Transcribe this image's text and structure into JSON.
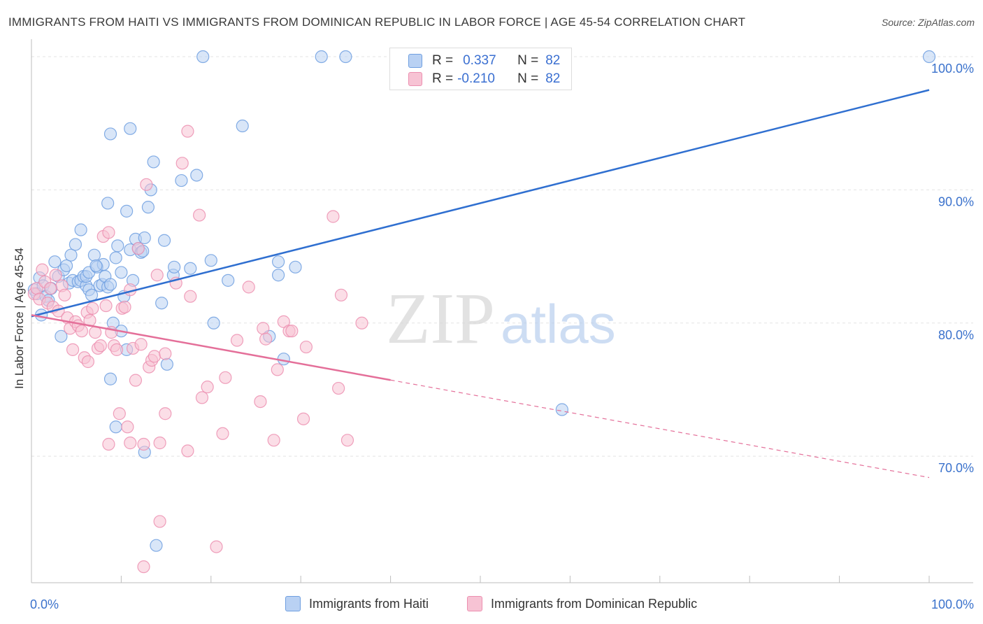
{
  "title": "IMMIGRANTS FROM HAITI VS IMMIGRANTS FROM DOMINICAN REPUBLIC IN LABOR FORCE | AGE 45-54 CORRELATION CHART",
  "source": "Source: ZipAtlas.com",
  "watermark": {
    "zip": "ZIP",
    "atlas": "atlas"
  },
  "stats_box": {
    "rows": [
      {
        "r_label": "R =",
        "r_value": "0.337",
        "n_label": "N =",
        "n_value": "82"
      },
      {
        "r_label": "R =",
        "r_value": "-0.210",
        "n_label": "N =",
        "n_value": "82"
      }
    ]
  },
  "colors": {
    "haiti_fill": "#b9d1f3",
    "haiti_stroke": "#6f9fe0",
    "haiti_line": "#2f6fd0",
    "dr_fill": "#f7c3d4",
    "dr_stroke": "#ec8fb0",
    "dr_line": "#e46f99",
    "axis_label": "#3b72cc",
    "grid": "#e3e3e3"
  },
  "chart_data": {
    "type": "scatter",
    "title": "IMMIGRANTS FROM HAITI VS IMMIGRANTS FROM DOMINICAN REPUBLIC IN LABOR FORCE | AGE 45-54 CORRELATION CHART",
    "xlabel": "",
    "ylabel": "In Labor Force | Age 45-54",
    "x_tick_labels": [
      "0.0%",
      "100.0%"
    ],
    "y_tick_labels": [
      "70.0%",
      "80.0%",
      "90.0%",
      "100.0%"
    ],
    "y_ticks": [
      70,
      80,
      90,
      100
    ],
    "xlim": [
      0,
      100
    ],
    "ylim": [
      60.5,
      101
    ],
    "grid": true,
    "legend_placement": "bottom-center",
    "series": [
      {
        "name": "Immigrants from Haiti",
        "color": "#6f9fe0",
        "trend": {
          "x": [
            0,
            100
          ],
          "y": [
            80.5,
            97.5
          ],
          "dashed_from": null
        },
        "points": [
          [
            0.3,
            82.5
          ],
          [
            0.6,
            82.2
          ],
          [
            0.9,
            83.4
          ],
          [
            1.1,
            80.6
          ],
          [
            1.3,
            82.8
          ],
          [
            1.6,
            82.0
          ],
          [
            1.9,
            81.7
          ],
          [
            2.2,
            82.6
          ],
          [
            2.6,
            84.6
          ],
          [
            3.0,
            83.5
          ],
          [
            3.3,
            79.0
          ],
          [
            3.6,
            84.0
          ],
          [
            3.9,
            84.3
          ],
          [
            4.2,
            83.0
          ],
          [
            4.4,
            85.1
          ],
          [
            4.6,
            83.2
          ],
          [
            4.9,
            85.9
          ],
          [
            5.2,
            83.1
          ],
          [
            5.5,
            83.2
          ],
          [
            5.8,
            83.5
          ],
          [
            5.5,
            87.0
          ],
          [
            6.1,
            82.8
          ],
          [
            6.4,
            82.5
          ],
          [
            6.1,
            83.5
          ],
          [
            6.7,
            82.1
          ],
          [
            6.4,
            83.8
          ],
          [
            7.0,
            85.1
          ],
          [
            7.3,
            84.2
          ],
          [
            7.6,
            82.8
          ],
          [
            7.9,
            82.9
          ],
          [
            8.2,
            83.5
          ],
          [
            8.5,
            82.7
          ],
          [
            8.0,
            84.4
          ],
          [
            8.8,
            82.9
          ],
          [
            8.5,
            89.0
          ],
          [
            8.8,
            94.2
          ],
          [
            8.8,
            75.8
          ],
          [
            9.1,
            80.0
          ],
          [
            9.4,
            84.9
          ],
          [
            9.6,
            85.8
          ],
          [
            9.4,
            72.2
          ],
          [
            10.0,
            79.4
          ],
          [
            10.0,
            83.8
          ],
          [
            10.3,
            82.0
          ],
          [
            10.6,
            78.0
          ],
          [
            10.6,
            88.4
          ],
          [
            11.0,
            85.5
          ],
          [
            11.0,
            94.6
          ],
          [
            11.3,
            83.2
          ],
          [
            11.6,
            86.3
          ],
          [
            11.9,
            85.6
          ],
          [
            12.2,
            85.3
          ],
          [
            12.6,
            86.4
          ],
          [
            12.6,
            70.3
          ],
          [
            13.0,
            88.7
          ],
          [
            13.3,
            90.0
          ],
          [
            13.6,
            92.1
          ],
          [
            13.9,
            63.3
          ],
          [
            14.5,
            81.5
          ],
          [
            14.8,
            86.2
          ],
          [
            15.1,
            76.9
          ],
          [
            15.8,
            83.6
          ],
          [
            15.9,
            84.2
          ],
          [
            16.7,
            90.7
          ],
          [
            17.7,
            84.1
          ],
          [
            18.4,
            91.1
          ],
          [
            19.1,
            100.0
          ],
          [
            20.0,
            84.7
          ],
          [
            20.3,
            80.0
          ],
          [
            21.9,
            83.2
          ],
          [
            23.5,
            94.8
          ],
          [
            26.5,
            79.0
          ],
          [
            27.5,
            84.6
          ],
          [
            27.5,
            83.6
          ],
          [
            28.1,
            77.3
          ],
          [
            29.4,
            84.2
          ],
          [
            32.3,
            100.0
          ],
          [
            35.0,
            100.0
          ],
          [
            59.1,
            73.5
          ],
          [
            100.0,
            100.0
          ],
          [
            7.2,
            84.3
          ],
          [
            12.4,
            85.4
          ]
        ]
      },
      {
        "name": "Immigrants from Dominican Republic",
        "color": "#ec8fb0",
        "trend": {
          "x": [
            0,
            100
          ],
          "y": [
            80.6,
            68.4
          ],
          "dashed_from": 40
        },
        "points": [
          [
            0.3,
            82.2
          ],
          [
            0.6,
            82.6
          ],
          [
            0.9,
            81.8
          ],
          [
            1.2,
            84.0
          ],
          [
            1.5,
            83.1
          ],
          [
            1.8,
            81.5
          ],
          [
            2.1,
            82.6
          ],
          [
            2.4,
            81.2
          ],
          [
            2.7,
            83.6
          ],
          [
            3.0,
            80.9
          ],
          [
            3.4,
            82.8
          ],
          [
            3.7,
            82.1
          ],
          [
            4.0,
            80.4
          ],
          [
            4.3,
            79.6
          ],
          [
            4.6,
            78.0
          ],
          [
            4.9,
            80.1
          ],
          [
            5.2,
            79.8
          ],
          [
            5.6,
            79.4
          ],
          [
            5.9,
            77.4
          ],
          [
            6.2,
            80.8
          ],
          [
            6.5,
            80.2
          ],
          [
            6.3,
            77.1
          ],
          [
            6.8,
            81.1
          ],
          [
            7.1,
            79.3
          ],
          [
            7.4,
            78.1
          ],
          [
            7.7,
            78.3
          ],
          [
            8.0,
            86.5
          ],
          [
            8.3,
            81.3
          ],
          [
            8.6,
            86.8
          ],
          [
            8.9,
            79.3
          ],
          [
            9.2,
            78.3
          ],
          [
            9.5,
            78.0
          ],
          [
            9.8,
            73.2
          ],
          [
            10.1,
            81.1
          ],
          [
            10.4,
            81.2
          ],
          [
            10.7,
            72.2
          ],
          [
            11.0,
            82.5
          ],
          [
            11.3,
            78.1
          ],
          [
            11.6,
            75.7
          ],
          [
            11.9,
            85.6
          ],
          [
            12.2,
            78.4
          ],
          [
            12.5,
            70.9
          ],
          [
            12.8,
            90.4
          ],
          [
            13.1,
            76.7
          ],
          [
            13.4,
            77.2
          ],
          [
            13.7,
            77.5
          ],
          [
            14.0,
            83.6
          ],
          [
            14.3,
            65.1
          ],
          [
            14.3,
            71.0
          ],
          [
            14.9,
            73.2
          ],
          [
            14.9,
            77.7
          ],
          [
            16.1,
            83.0
          ],
          [
            16.8,
            92.0
          ],
          [
            17.4,
            70.4
          ],
          [
            17.4,
            94.4
          ],
          [
            17.7,
            82.0
          ],
          [
            18.7,
            88.1
          ],
          [
            19.0,
            74.4
          ],
          [
            19.6,
            75.2
          ],
          [
            20.6,
            63.2
          ],
          [
            21.3,
            71.7
          ],
          [
            21.6,
            75.9
          ],
          [
            22.9,
            78.7
          ],
          [
            24.2,
            82.7
          ],
          [
            25.5,
            74.1
          ],
          [
            25.8,
            79.6
          ],
          [
            26.1,
            78.8
          ],
          [
            27.0,
            71.2
          ],
          [
            27.4,
            76.5
          ],
          [
            28.1,
            80.1
          ],
          [
            28.7,
            79.4
          ],
          [
            29.0,
            79.4
          ],
          [
            30.3,
            72.8
          ],
          [
            30.6,
            78.2
          ],
          [
            33.6,
            88.0
          ],
          [
            34.2,
            75.1
          ],
          [
            34.5,
            82.1
          ],
          [
            35.2,
            71.2
          ],
          [
            36.8,
            80.0
          ],
          [
            12.5,
            61.7
          ],
          [
            8.6,
            70.9
          ],
          [
            11.0,
            71.0
          ]
        ]
      }
    ]
  },
  "legend_bottom": [
    {
      "label": "Immigrants from Haiti"
    },
    {
      "label": "Immigrants from Dominican Republic"
    }
  ]
}
